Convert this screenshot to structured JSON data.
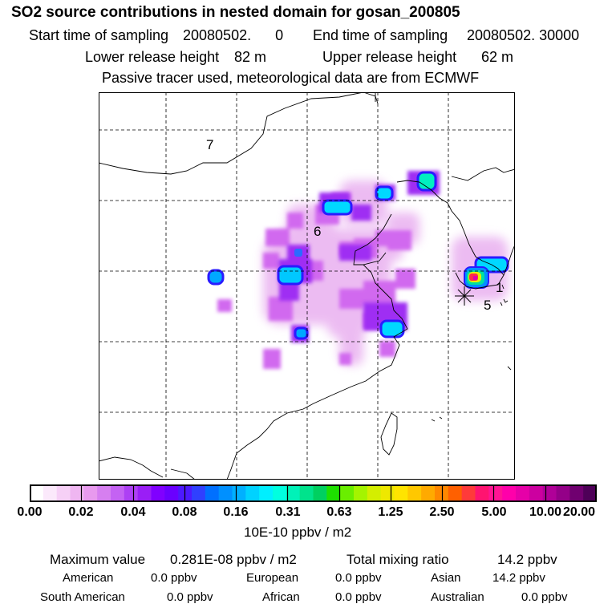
{
  "header": {
    "title": "SO2 source contributions in nested domain for gosan_200805",
    "start_label": "Start time of sampling",
    "start_value": "20080502.      0",
    "end_label": "End time of sampling",
    "end_value": "20080502. 30000",
    "lower_label": "Lower release height",
    "lower_value": "82 m",
    "upper_label": "Upper release height",
    "upper_value": "62 m",
    "note": "Passive tracer used, meteorological data are from ECMWF"
  },
  "map": {
    "region_labels": [
      "7",
      "6",
      "1",
      "5"
    ],
    "receptor_marker": "asterisk-icon"
  },
  "colorbar": {
    "ticks": [
      "0.00",
      "0.02",
      "0.04",
      "0.08",
      "0.16",
      "0.31",
      "0.63",
      "1.25",
      "2.50",
      "5.00",
      "10.00",
      "20.00"
    ],
    "units": "10E-10 ppbv / m2",
    "colors": [
      "#ffffff",
      "#fbe9fb",
      "#f6d0f6",
      "#efb6f1",
      "#e89aee",
      "#d67ff0",
      "#c462f3",
      "#ad40f4",
      "#9a1ef6",
      "#8000ff",
      "#6a00ff",
      "#4d19ff",
      "#3040ff",
      "#0070ff",
      "#0090ff",
      "#00b0ff",
      "#00d2ff",
      "#00efff",
      "#00ffe0",
      "#00f2b8",
      "#00e38c",
      "#00d060",
      "#1ee000",
      "#6aee00",
      "#a4f400",
      "#d4ee00",
      "#eee800",
      "#ffe400",
      "#ffc800",
      "#ffaa00",
      "#ff8800",
      "#ff6000",
      "#ff3a3a",
      "#ff1470",
      "#ff1494",
      "#ff00aa",
      "#e600a8",
      "#cc00a0",
      "#b00098",
      "#940088",
      "#700070",
      "#4e0058"
    ]
  },
  "stats": {
    "max_label": "Maximum value",
    "max_value": "0.281E-08 ppbv / m2",
    "total_label": "Total mixing ratio",
    "total_value": "14.2 ppbv"
  },
  "regions": [
    {
      "name": "American",
      "value": "0.0 ppbv"
    },
    {
      "name": "European",
      "value": "0.0 ppbv"
    },
    {
      "name": "Asian",
      "value": "14.2 ppbv"
    },
    {
      "name": "South American",
      "value": "0.0 ppbv"
    },
    {
      "name": "African",
      "value": "0.0 ppbv"
    },
    {
      "name": "Australian",
      "value": "0.0 ppbv"
    }
  ]
}
